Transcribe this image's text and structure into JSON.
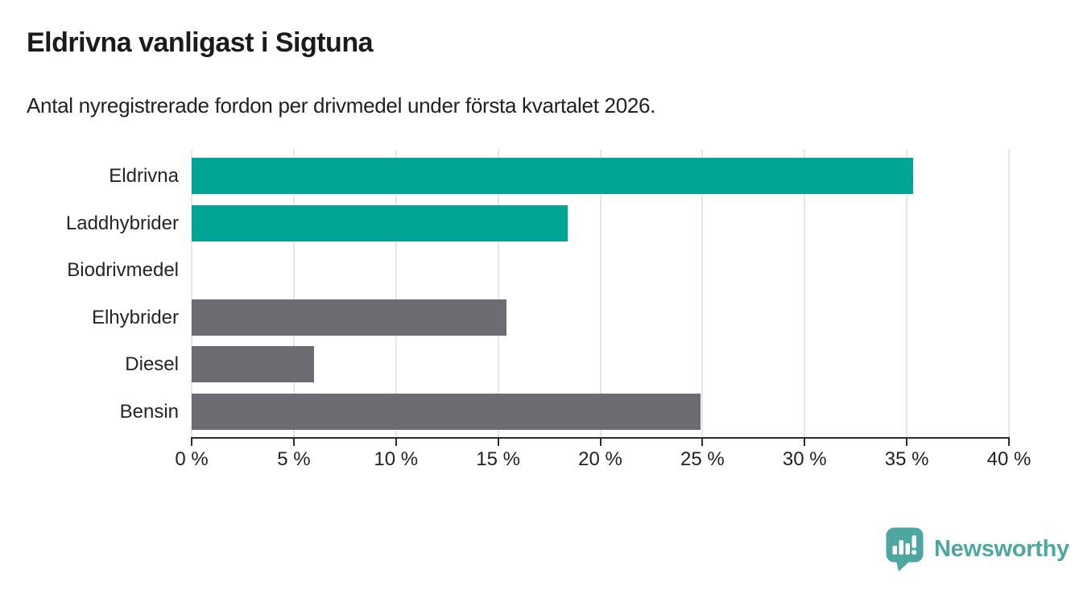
{
  "chart_data": {
    "type": "bar",
    "orientation": "horizontal",
    "title": "Eldrivna vanligast i Sigtuna",
    "subtitle": "Antal nyregistrerade fordon per drivmedel under första kvartalet 2026.",
    "categories": [
      "Eldrivna",
      "Laddhybrider",
      "Biodrivmedel",
      "Elhybrider",
      "Diesel",
      "Bensin"
    ],
    "values": [
      35.3,
      18.4,
      0,
      15.4,
      6.0,
      24.9
    ],
    "bar_colors": [
      "#00a596",
      "#00a596",
      "#00a596",
      "#6c6c72",
      "#6c6c72",
      "#6c6c72"
    ],
    "xlim": [
      0,
      40
    ],
    "xticks": [
      0,
      5,
      10,
      15,
      20,
      25,
      30,
      35,
      40
    ],
    "xtick_labels": [
      "0 %",
      "5 %",
      "10 %",
      "15 %",
      "20 %",
      "25 %",
      "30 %",
      "35 %",
      "40 %"
    ],
    "grid": "vertical",
    "xlabel": "",
    "ylabel": ""
  },
  "colors": {
    "accent_teal": "#00a596",
    "neutral_gray": "#6c6c72",
    "axis": "#2d2d2d",
    "gridline": "#e7e7e7",
    "logo_teal": "#4ba79f"
  },
  "footer": {
    "brand": "Newsworthy"
  }
}
